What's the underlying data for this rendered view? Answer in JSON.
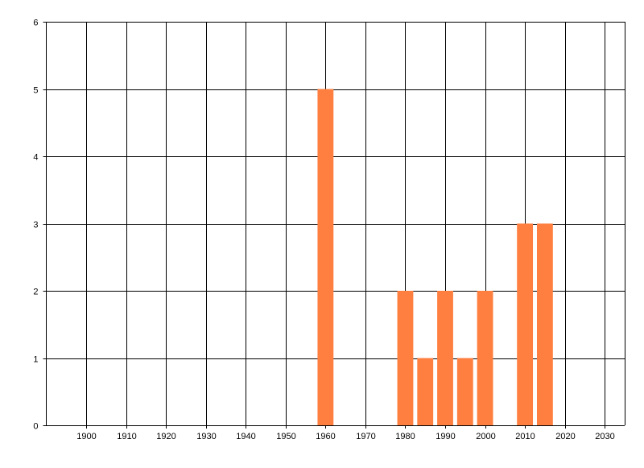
{
  "chart_data": {
    "type": "bar",
    "title": "",
    "xlabel": "",
    "ylabel": "",
    "x": [
      1960,
      1980,
      1985,
      1990,
      1995,
      2000,
      2010,
      2015
    ],
    "values": [
      5,
      2,
      1,
      2,
      1,
      2,
      3,
      3
    ],
    "bar_width_years": 4,
    "xlim": [
      1890,
      2035
    ],
    "ylim": [
      0,
      6
    ],
    "xticks": [
      1900,
      1910,
      1920,
      1930,
      1940,
      1950,
      1960,
      1970,
      1980,
      1990,
      2000,
      2010,
      2020,
      2030
    ],
    "yticks": [
      0,
      1,
      2,
      3,
      4,
      5,
      6
    ],
    "grid": true,
    "bar_color": "#FF7F40"
  }
}
